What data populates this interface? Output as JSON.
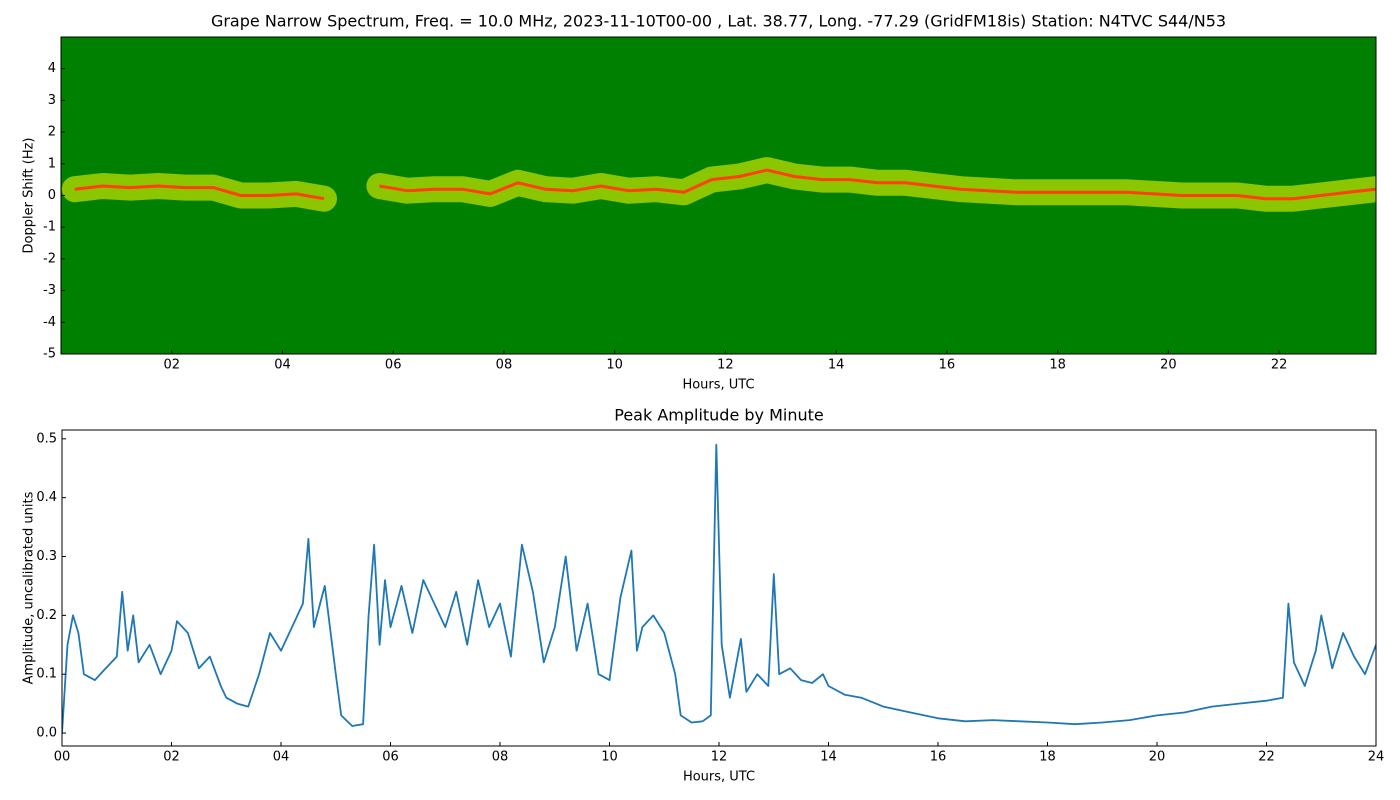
{
  "chart_data": [
    {
      "type": "spectrogram",
      "title": "Grape Narrow Spectrum, Freq. = 10.0 MHz, 2023-11-10T00-00 , Lat.  38.77, Long. -77.29 (GridFM18is) Station: N4TVC S44/N53",
      "xlabel": "Hours, UTC",
      "ylabel": "Doppler Shift (Hz)",
      "background_color": "#008000",
      "color": "#ff4000",
      "glow_color": "#ffff00",
      "x": [
        0.25,
        0.75,
        1.25,
        1.75,
        2.25,
        2.75,
        3.25,
        3.75,
        4.25,
        4.75,
        5.25,
        5.75,
        6.25,
        6.75,
        7.25,
        7.75,
        8.25,
        8.75,
        9.25,
        9.75,
        10.25,
        10.75,
        11.25,
        11.75,
        12.25,
        12.75,
        13.25,
        13.75,
        14.25,
        14.75,
        15.25,
        15.75,
        16.25,
        16.75,
        17.25,
        17.75,
        18.25,
        18.75,
        19.25,
        19.75,
        20.25,
        20.75,
        21.25,
        21.75,
        22.25,
        22.75,
        23.25,
        23.75
      ],
      "values": [
        0.2,
        0.3,
        0.25,
        0.3,
        0.25,
        0.25,
        0.0,
        0.0,
        0.05,
        -0.1,
        null,
        0.3,
        0.15,
        0.2,
        0.2,
        0.05,
        0.4,
        0.2,
        0.15,
        0.3,
        0.15,
        0.2,
        0.1,
        0.5,
        0.6,
        0.8,
        0.6,
        0.5,
        0.5,
        0.4,
        0.4,
        0.3,
        0.2,
        0.15,
        0.1,
        0.1,
        0.1,
        0.1,
        0.1,
        0.05,
        0.0,
        0.0,
        0.0,
        -0.1,
        -0.1,
        0.0,
        0.1,
        0.2
      ],
      "xlim": [
        0,
        23.75
      ],
      "ylim": [
        -5,
        5
      ],
      "xticks": [
        {
          "value": 2,
          "label": "02"
        },
        {
          "value": 4,
          "label": "04"
        },
        {
          "value": 6,
          "label": "06"
        },
        {
          "value": 8,
          "label": "08"
        },
        {
          "value": 10,
          "label": "10"
        },
        {
          "value": 12,
          "label": "12"
        },
        {
          "value": 14,
          "label": "14"
        },
        {
          "value": 16,
          "label": "16"
        },
        {
          "value": 18,
          "label": "18"
        },
        {
          "value": 20,
          "label": "20"
        },
        {
          "value": 22,
          "label": "22"
        }
      ],
      "yticks": [
        -5,
        -4,
        -3,
        -2,
        -1,
        0,
        1,
        2,
        3,
        4
      ]
    },
    {
      "type": "line",
      "title": "Peak Amplitude by Minute",
      "xlabel": "Hours, UTC",
      "ylabel": "Amplitude, uncalibrated units",
      "color": "#1f77b4",
      "x": [
        0,
        0.1,
        0.2,
        0.3,
        0.4,
        0.6,
        0.8,
        1.0,
        1.1,
        1.2,
        1.3,
        1.4,
        1.6,
        1.8,
        2.0,
        2.1,
        2.3,
        2.5,
        2.7,
        2.9,
        3.0,
        3.2,
        3.4,
        3.6,
        3.8,
        4.0,
        4.2,
        4.4,
        4.5,
        4.6,
        4.8,
        5.0,
        5.1,
        5.3,
        5.5,
        5.6,
        5.7,
        5.8,
        5.9,
        6.0,
        6.2,
        6.4,
        6.6,
        6.8,
        7.0,
        7.2,
        7.4,
        7.6,
        7.8,
        8.0,
        8.2,
        8.4,
        8.6,
        8.8,
        9.0,
        9.2,
        9.4,
        9.6,
        9.8,
        10.0,
        10.2,
        10.4,
        10.5,
        10.6,
        10.8,
        11.0,
        11.2,
        11.3,
        11.5,
        11.7,
        11.85,
        11.95,
        12.05,
        12.2,
        12.4,
        12.5,
        12.7,
        12.9,
        13.0,
        13.1,
        13.3,
        13.5,
        13.7,
        13.9,
        14.0,
        14.3,
        14.6,
        15.0,
        15.5,
        16.0,
        16.5,
        17.0,
        17.5,
        18.0,
        18.5,
        19.0,
        19.5,
        20.0,
        20.5,
        21.0,
        21.5,
        22.0,
        22.3,
        22.4,
        22.5,
        22.7,
        22.9,
        23.0,
        23.2,
        23.4,
        23.6,
        23.8,
        24.0
      ],
      "values": [
        0.0,
        0.15,
        0.2,
        0.17,
        0.1,
        0.09,
        0.11,
        0.13,
        0.24,
        0.14,
        0.2,
        0.12,
        0.15,
        0.1,
        0.14,
        0.19,
        0.17,
        0.11,
        0.13,
        0.08,
        0.06,
        0.05,
        0.045,
        0.1,
        0.17,
        0.14,
        0.18,
        0.22,
        0.33,
        0.18,
        0.25,
        0.1,
        0.03,
        0.012,
        0.015,
        0.2,
        0.32,
        0.15,
        0.26,
        0.18,
        0.25,
        0.17,
        0.26,
        0.22,
        0.18,
        0.24,
        0.15,
        0.26,
        0.18,
        0.22,
        0.13,
        0.32,
        0.24,
        0.12,
        0.18,
        0.3,
        0.14,
        0.22,
        0.1,
        0.09,
        0.23,
        0.31,
        0.14,
        0.18,
        0.2,
        0.17,
        0.1,
        0.03,
        0.018,
        0.02,
        0.03,
        0.49,
        0.15,
        0.06,
        0.16,
        0.07,
        0.1,
        0.08,
        0.27,
        0.1,
        0.11,
        0.09,
        0.085,
        0.1,
        0.08,
        0.065,
        0.06,
        0.045,
        0.035,
        0.025,
        0.02,
        0.022,
        0.02,
        0.018,
        0.015,
        0.018,
        0.022,
        0.03,
        0.035,
        0.045,
        0.05,
        0.055,
        0.06,
        0.22,
        0.12,
        0.08,
        0.14,
        0.2,
        0.11,
        0.17,
        0.13,
        0.1,
        0.15
      ],
      "xlim": [
        0,
        24
      ],
      "ylim": [
        -0.022,
        0.515
      ],
      "xticks": [
        {
          "value": 0,
          "label": "00"
        },
        {
          "value": 2,
          "label": "02"
        },
        {
          "value": 4,
          "label": "04"
        },
        {
          "value": 6,
          "label": "06"
        },
        {
          "value": 8,
          "label": "08"
        },
        {
          "value": 10,
          "label": "10"
        },
        {
          "value": 12,
          "label": "12"
        },
        {
          "value": 14,
          "label": "14"
        },
        {
          "value": 16,
          "label": "16"
        },
        {
          "value": 18,
          "label": "18"
        },
        {
          "value": 20,
          "label": "20"
        },
        {
          "value": 22,
          "label": "22"
        },
        {
          "value": 24,
          "label": "24"
        }
      ],
      "yticks": [
        {
          "value": 0,
          "label": "0.0"
        },
        0.1,
        0.2,
        0.3,
        0.4,
        0.5
      ]
    }
  ]
}
